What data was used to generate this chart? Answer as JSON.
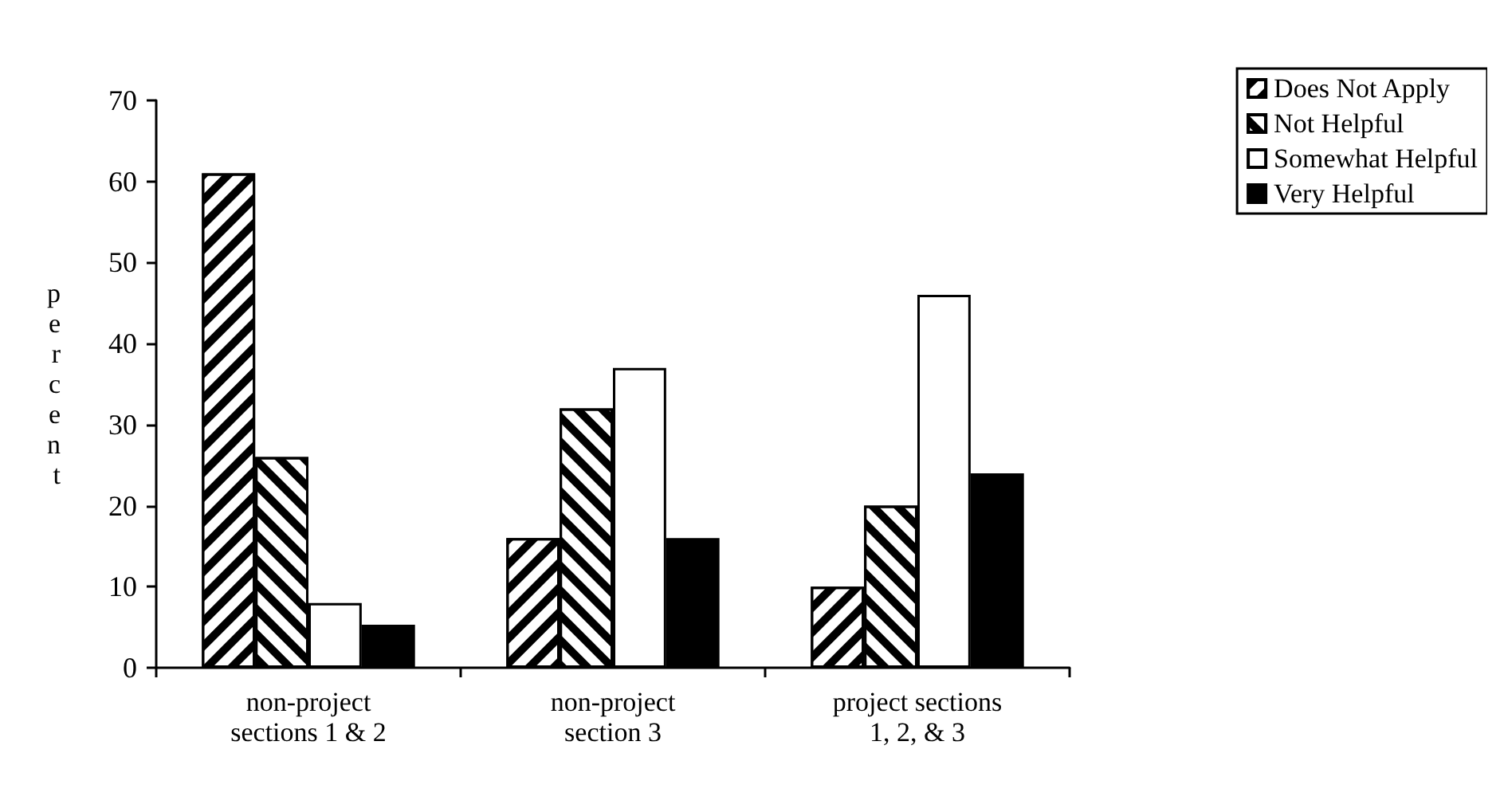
{
  "chart_data": {
    "type": "bar",
    "ylabel": "percent",
    "categories": [
      "non-project\nsections 1 & 2",
      "non-project\nsection 3",
      "project sections\n1, 2, & 3"
    ],
    "series": [
      {
        "name": "Does Not Apply",
        "color": "#ffffff",
        "values": [
          61,
          16,
          10
        ]
      },
      {
        "name": "Not Helpful",
        "color": "#ffffff",
        "values": [
          26,
          32,
          20
        ]
      },
      {
        "name": "Somewhat Helpful",
        "color": "#ffffff",
        "values": [
          8,
          37,
          46
        ]
      },
      {
        "name": "Very Helpful",
        "color": "#000000",
        "values": [
          5.3,
          16,
          24
        ]
      }
    ],
    "ylim": [
      0,
      70
    ],
    "yticks": [
      0,
      10,
      20,
      30,
      40,
      50,
      60,
      70
    ],
    "grid": false,
    "legend": "top right"
  }
}
